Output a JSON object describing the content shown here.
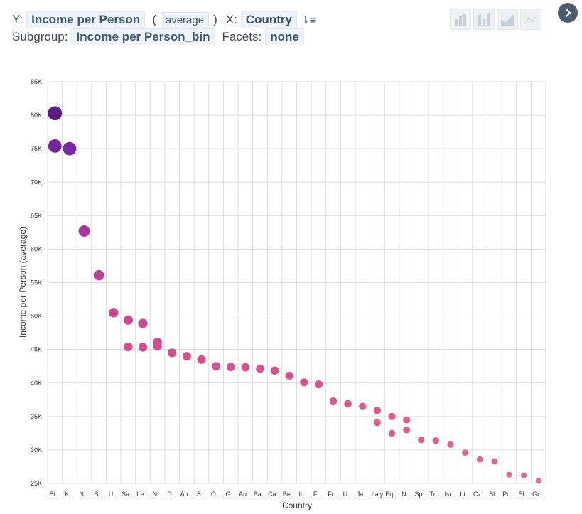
{
  "controls": {
    "y_label": "Y:",
    "y_field": "Income per Person",
    "paren_open": "(",
    "aggregate": "average",
    "paren_close": ")",
    "x_label": "X:",
    "x_field": "Country",
    "subgroup_label": "Subgroup:",
    "subgroup_field": "Income per Person_bin",
    "facets_label": "Facets:",
    "facets_value": "none"
  },
  "chart_types": [
    "bar-chart-icon",
    "column-chart-icon",
    "area-chart-icon",
    "line-chart-icon"
  ],
  "colors": {
    "pill_bg": "#eef4f9",
    "pill_text": "#3d5872",
    "grid": "#dddddd",
    "nav_button": "#4d5d6d"
  },
  "chart_data": {
    "type": "scatter",
    "title": "",
    "xlabel": "Country",
    "ylabel": "Income per Person (average)",
    "ylim": [
      25000,
      85000
    ],
    "y_ticks": [
      25000,
      30000,
      35000,
      40000,
      45000,
      50000,
      55000,
      60000,
      65000,
      70000,
      75000,
      80000,
      85000
    ],
    "y_tick_labels": [
      "25K",
      "30K",
      "35K",
      "40K",
      "45K",
      "50K",
      "55K",
      "60K",
      "65K",
      "70K",
      "75K",
      "80K",
      "85K"
    ],
    "categories": [
      "Si...",
      "K...",
      "N...",
      "S...",
      "U...",
      "Sa...",
      "Ire...",
      "N...",
      "D...",
      "Au...",
      "S...",
      "O...",
      "G...",
      "Au...",
      "Ba...",
      "Ca...",
      "Be...",
      "Ic...",
      "Fi...",
      "Fr...",
      "U...",
      "Ja...",
      "Italy",
      "Eq...",
      "N...",
      "Sp...",
      "Tri...",
      "Isr...",
      "Li...",
      "Cz...",
      "Sl...",
      "Po...",
      "Sl...",
      "Gr..."
    ],
    "points": [
      {
        "x": 0,
        "y": 80300
      },
      {
        "x": 0,
        "y": 75400
      },
      {
        "x": 1,
        "y": 75000
      },
      {
        "x": 2,
        "y": 62700
      },
      {
        "x": 3,
        "y": 56100
      },
      {
        "x": 4,
        "y": 50500
      },
      {
        "x": 5,
        "y": 49400
      },
      {
        "x": 5,
        "y": 45400
      },
      {
        "x": 6,
        "y": 48900
      },
      {
        "x": 6,
        "y": 45350
      },
      {
        "x": 7,
        "y": 46100
      },
      {
        "x": 7,
        "y": 45500
      },
      {
        "x": 8,
        "y": 44500
      },
      {
        "x": 9,
        "y": 44000
      },
      {
        "x": 10,
        "y": 43500
      },
      {
        "x": 11,
        "y": 42500
      },
      {
        "x": 12,
        "y": 42400
      },
      {
        "x": 13,
        "y": 42350
      },
      {
        "x": 14,
        "y": 42150
      },
      {
        "x": 15,
        "y": 41850
      },
      {
        "x": 16,
        "y": 41100
      },
      {
        "x": 17,
        "y": 40100
      },
      {
        "x": 18,
        "y": 39800
      },
      {
        "x": 19,
        "y": 37300
      },
      {
        "x": 20,
        "y": 36900
      },
      {
        "x": 21,
        "y": 36500
      },
      {
        "x": 22,
        "y": 35900
      },
      {
        "x": 22,
        "y": 34100
      },
      {
        "x": 23,
        "y": 35000
      },
      {
        "x": 23,
        "y": 32500
      },
      {
        "x": 24,
        "y": 34500
      },
      {
        "x": 24,
        "y": 33000
      },
      {
        "x": 25,
        "y": 31500
      },
      {
        "x": 26,
        "y": 31400
      },
      {
        "x": 27,
        "y": 30800
      },
      {
        "x": 28,
        "y": 29600
      },
      {
        "x": 29,
        "y": 28600
      },
      {
        "x": 30,
        "y": 28300
      },
      {
        "x": 31,
        "y": 26300
      },
      {
        "x": 32,
        "y": 26200
      },
      {
        "x": 33,
        "y": 25400
      }
    ],
    "grid": true,
    "legend": "none"
  }
}
